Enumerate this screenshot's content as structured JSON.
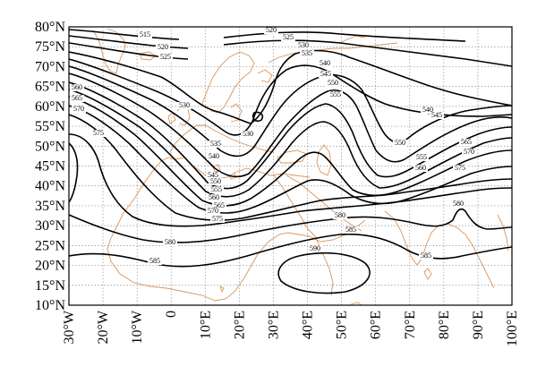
{
  "map": {
    "lat_labels": [
      "80°N",
      "75°N",
      "70°N",
      "65°N",
      "60°N",
      "55°N",
      "50°N",
      "45°N",
      "40°N",
      "35°N",
      "30°N",
      "25°N",
      "20°N",
      "15°N",
      "10°N"
    ],
    "lon_labels": [
      "30°W",
      "20°W",
      "10°W",
      "0",
      "10°E",
      "20°E",
      "30°E",
      "40°E",
      "50°E",
      "60°E",
      "70°E",
      "80°E",
      "90°E",
      "100°E"
    ],
    "lat_range": [
      10,
      80
    ],
    "lon_range": [
      -30,
      100
    ],
    "contour_labels": [
      "515",
      "520",
      "520",
      "525",
      "525",
      "530",
      "530",
      "530",
      "535",
      "535",
      "540",
      "540",
      "540",
      "545",
      "545",
      "545",
      "550",
      "550",
      "550",
      "555",
      "555",
      "555",
      "560",
      "560",
      "560",
      "565",
      "565",
      "565",
      "570",
      "570",
      "570",
      "575",
      "575",
      "575",
      "580",
      "580",
      "580",
      "585",
      "585",
      "585",
      "590"
    ],
    "colors": {
      "contour": "#000000",
      "coastline": "#d9965a",
      "grid": "#777777"
    }
  }
}
